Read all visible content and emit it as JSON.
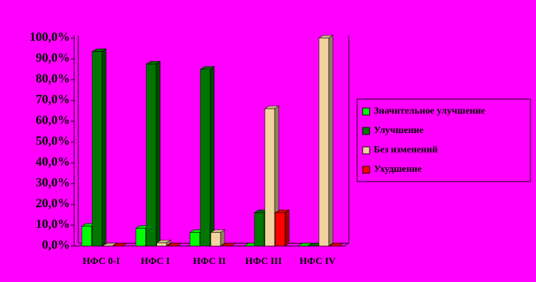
{
  "chart_data": {
    "type": "bar3d",
    "categories": [
      "НФС 0-I",
      "НФС I",
      "НФС II",
      "НФС III",
      "НФС IV"
    ],
    "series": [
      {
        "name": "Значительное улучшение",
        "color": "#00ff00",
        "values": [
          9.5,
          8.5,
          6.5,
          0,
          0
        ]
      },
      {
        "name": "Улучшение",
        "color": "#007700",
        "values": [
          93.5,
          87.5,
          85,
          16,
          0
        ]
      },
      {
        "name": "Без изменений",
        "color": "#f2d3a0",
        "values": [
          0,
          1.5,
          6.5,
          66,
          100
        ]
      },
      {
        "name": "Ухудшение",
        "color": "#ff0000",
        "values": [
          0,
          0,
          0,
          16,
          0
        ]
      }
    ],
    "ylim": [
      0,
      100
    ],
    "yticks": [
      {
        "value": 0,
        "label": "0,0%"
      },
      {
        "value": 10,
        "label": "10,0%"
      },
      {
        "value": 20,
        "label": "20,0%"
      },
      {
        "value": 30,
        "label": "30,0%"
      },
      {
        "value": 40,
        "label": "40,0%"
      },
      {
        "value": 50,
        "label": "50,0%"
      },
      {
        "value": 60,
        "label": "60,0%"
      },
      {
        "value": 70,
        "label": "70,0%"
      },
      {
        "value": 80,
        "label": "80,0%"
      },
      {
        "value": 90,
        "label": "90,0%"
      },
      {
        "value": 100,
        "label": "100,0%"
      }
    ],
    "legend": "right"
  }
}
